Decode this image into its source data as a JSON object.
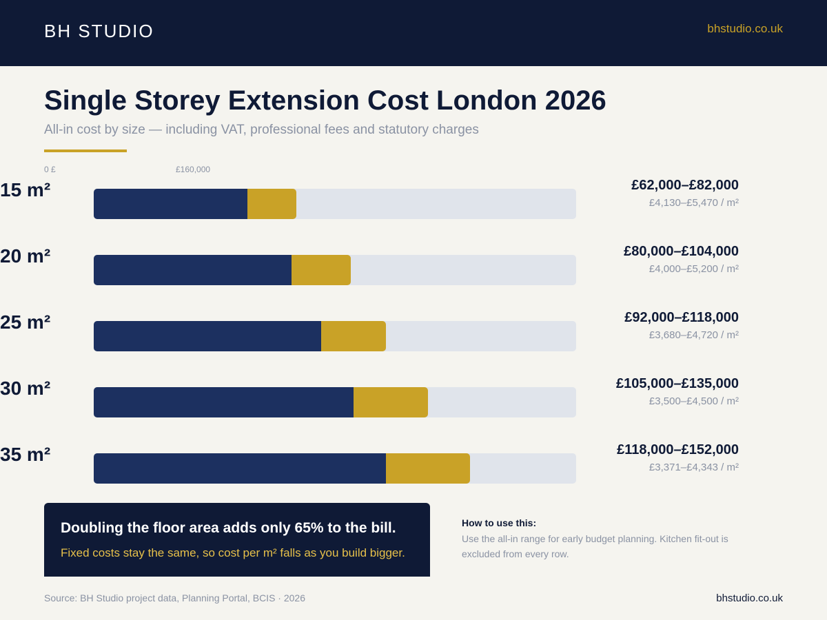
{
  "header": {
    "brand": "BH STUDIO",
    "site": "bhstudio.co.uk"
  },
  "colors": {
    "navy": "#0f1a36",
    "low_bar": "#1c3060",
    "upper_bar": "#c9a227",
    "track": "#e0e4eb",
    "background": "#f5f4ef"
  },
  "chart_data": {
    "type": "bar",
    "orientation": "horizontal",
    "stacked_range": true,
    "title": "Single Storey Extension Cost London 2026",
    "subtitle": "All-in cost by size — including VAT, professional fees and statutory charges",
    "ticks": [
      "0 £",
      "£160,000"
    ],
    "xlim": [
      0,
      160000
    ],
    "categories": [
      "15 m²",
      "20 m²",
      "25 m²",
      "30 m²",
      "35 m²"
    ],
    "series": [
      {
        "role": "low",
        "values": [
          62000,
          80000,
          92000,
          105000,
          118000
        ]
      },
      {
        "role": "high",
        "values": [
          82000,
          104000,
          118000,
          135000,
          152000
        ]
      }
    ],
    "range_labels": [
      "£62,000–£82,000",
      "£80,000–£104,000",
      "£92,000–£118,000",
      "£105,000–£135,000",
      "£118,000–£152,000"
    ],
    "per_m2_labels": [
      "£4,130–£5,470 / m²",
      "£4,000–£5,200 / m²",
      "£3,680–£4,720 / m²",
      "£3,500–£4,500 / m²",
      "£3,371–£4,343 / m²"
    ]
  },
  "callout": {
    "headline": "Doubling the floor area adds only 65% to the bill.",
    "sub": "Fixed costs stay the same, so cost per m² falls as you build bigger."
  },
  "howto": {
    "title": "How to use this:",
    "body": "Use the all-in range for early budget planning. Kitchen fit-out is excluded from every row."
  },
  "footer": {
    "source": "Source: BH Studio project data, Planning Portal, BCIS · 2026",
    "site": "bhstudio.co.uk"
  }
}
